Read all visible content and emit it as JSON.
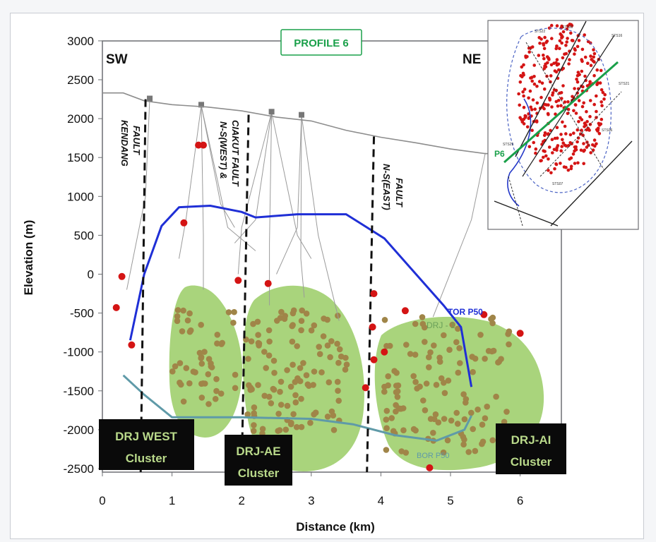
{
  "title": "PROFILE 6",
  "direction_left": "SW",
  "direction_right": "NE",
  "axes": {
    "ylabel": "Elevation (m)",
    "xlabel": "Distance (km)",
    "y_ticks": [
      "3000",
      "2500",
      "2000",
      "1500",
      "1000",
      "500",
      "0",
      "-500",
      "-1000",
      "-1500",
      "-2000",
      "-2500"
    ],
    "x_ticks": [
      "0",
      "1",
      "2",
      "3",
      "4",
      "5",
      "6"
    ],
    "xlim": [
      0,
      6.6
    ],
    "ylim": [
      -2500,
      3000
    ]
  },
  "faults": [
    {
      "name": "KENDANG FAULT",
      "label_lines": [
        "KENDANG",
        "FAULT"
      ],
      "x_top_km": 0.62,
      "x_bottom_km": 0.55
    },
    {
      "name": "N-S(WEST) & CIAKUT FAULT",
      "label_lines": [
        "N-S(WEST) &",
        "CIAKUT FAULT"
      ],
      "x_top_km": 2.1,
      "x_bottom_km": 2.0
    },
    {
      "name": "N-S(EAST) FAULT",
      "label_lines": [
        "N-S(EAST)",
        "FAULT"
      ],
      "x_top_km": 3.9,
      "x_bottom_km": 3.8
    }
  ],
  "lines": {
    "tor_p50_label": "TOR P50",
    "drj_label": "DRJ - 1",
    "bor_label": "BOR P50",
    "tor_color": "#1f2fd6",
    "bor_color": "#5f9aa8"
  },
  "topography": [
    [
      0,
      2330
    ],
    [
      0.3,
      2330
    ],
    [
      0.6,
      2230
    ],
    [
      1.0,
      2180
    ],
    [
      1.5,
      2150
    ],
    [
      2.0,
      2100
    ],
    [
      2.5,
      2020
    ],
    [
      3.0,
      1970
    ],
    [
      3.5,
      1850
    ],
    [
      4.0,
      1760
    ],
    [
      4.5,
      1690
    ],
    [
      5.0,
      1610
    ],
    [
      5.5,
      1550
    ],
    [
      5.9,
      1560
    ]
  ],
  "tor_p50": [
    [
      0.4,
      -850
    ],
    [
      0.6,
      0
    ],
    [
      0.85,
      620
    ],
    [
      1.1,
      860
    ],
    [
      1.55,
      880
    ],
    [
      2.0,
      800
    ],
    [
      2.2,
      730
    ],
    [
      2.8,
      770
    ],
    [
      3.5,
      770
    ],
    [
      4.05,
      460
    ],
    [
      4.9,
      -400
    ],
    [
      5.15,
      -680
    ],
    [
      5.3,
      -1450
    ]
  ],
  "bor_p50": [
    [
      0.3,
      -1300
    ],
    [
      0.6,
      -1550
    ],
    [
      1.0,
      -1840
    ],
    [
      2.0,
      -1840
    ],
    [
      3.0,
      -1860
    ],
    [
      3.6,
      -1930
    ],
    [
      4.2,
      -2070
    ],
    [
      4.8,
      -2140
    ],
    [
      5.2,
      -2000
    ],
    [
      5.3,
      -1820
    ]
  ],
  "clusters": [
    {
      "label_lines": [
        "DRJ WEST",
        "Cluster"
      ],
      "color": "#a9d47c"
    },
    {
      "label_lines": [
        "DRJ-AE",
        "Cluster"
      ],
      "color": "#a9d47c"
    },
    {
      "label_lines": [
        "DRJ-AI",
        "Cluster"
      ],
      "color": "#a9d47c"
    }
  ],
  "map_inset": {
    "station_labels": [
      "STS22",
      "STS30",
      "STS16",
      "STS21",
      "STS06",
      "STS29",
      "STS07"
    ],
    "profile_label": "P6",
    "profile_color": "#1aa04a"
  },
  "colors": {
    "cluster_fill": "#a9d47c",
    "event_dot": "#a08548",
    "red_dot": "#d41414",
    "fault_dash": "#111111"
  }
}
